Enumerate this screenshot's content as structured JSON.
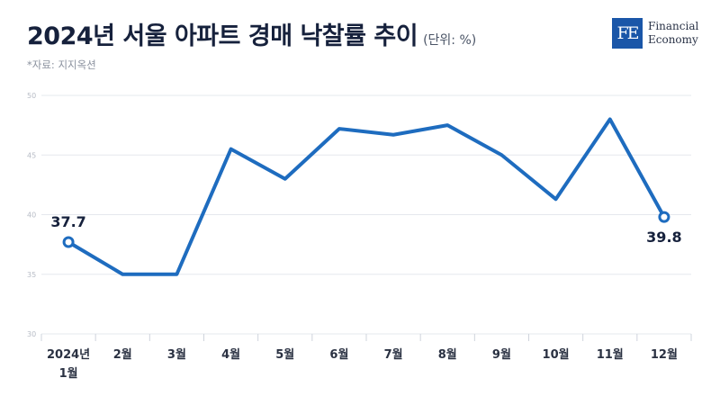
{
  "header": {
    "title": "2024년 서울 아파트 경매 낙찰률 추이",
    "subtitle": "(단위: %)",
    "source": "*자료: 지지옥션"
  },
  "brand": {
    "mark": "FE",
    "line1": "Financial",
    "line2": "Economy",
    "color": "#1a56a8"
  },
  "chart_data": {
    "type": "line",
    "title": "2024년 서울 아파트 경매 낙찰률 추이",
    "subtitle": "(단위: %)",
    "categories": [
      "2024년|1월",
      "2월",
      "3월",
      "4월",
      "5월",
      "6월",
      "7월",
      "8월",
      "9월",
      "10월",
      "11월",
      "12월"
    ],
    "series": [
      {
        "values": [
          37.7,
          35.0,
          35.0,
          45.5,
          43.0,
          47.2,
          46.7,
          47.5,
          45.0,
          41.3,
          48.0,
          39.8
        ],
        "color": "#1e6cbf"
      }
    ],
    "data_labels": [
      {
        "index": 0,
        "text": "37.7",
        "position": "above"
      },
      {
        "index": 11,
        "text": "39.8",
        "position": "below"
      }
    ],
    "yticks": [
      30,
      35,
      40,
      45,
      50
    ],
    "ylim": [
      30,
      50
    ],
    "xlabel": "",
    "ylabel": "",
    "grid": true,
    "legend": "none"
  }
}
